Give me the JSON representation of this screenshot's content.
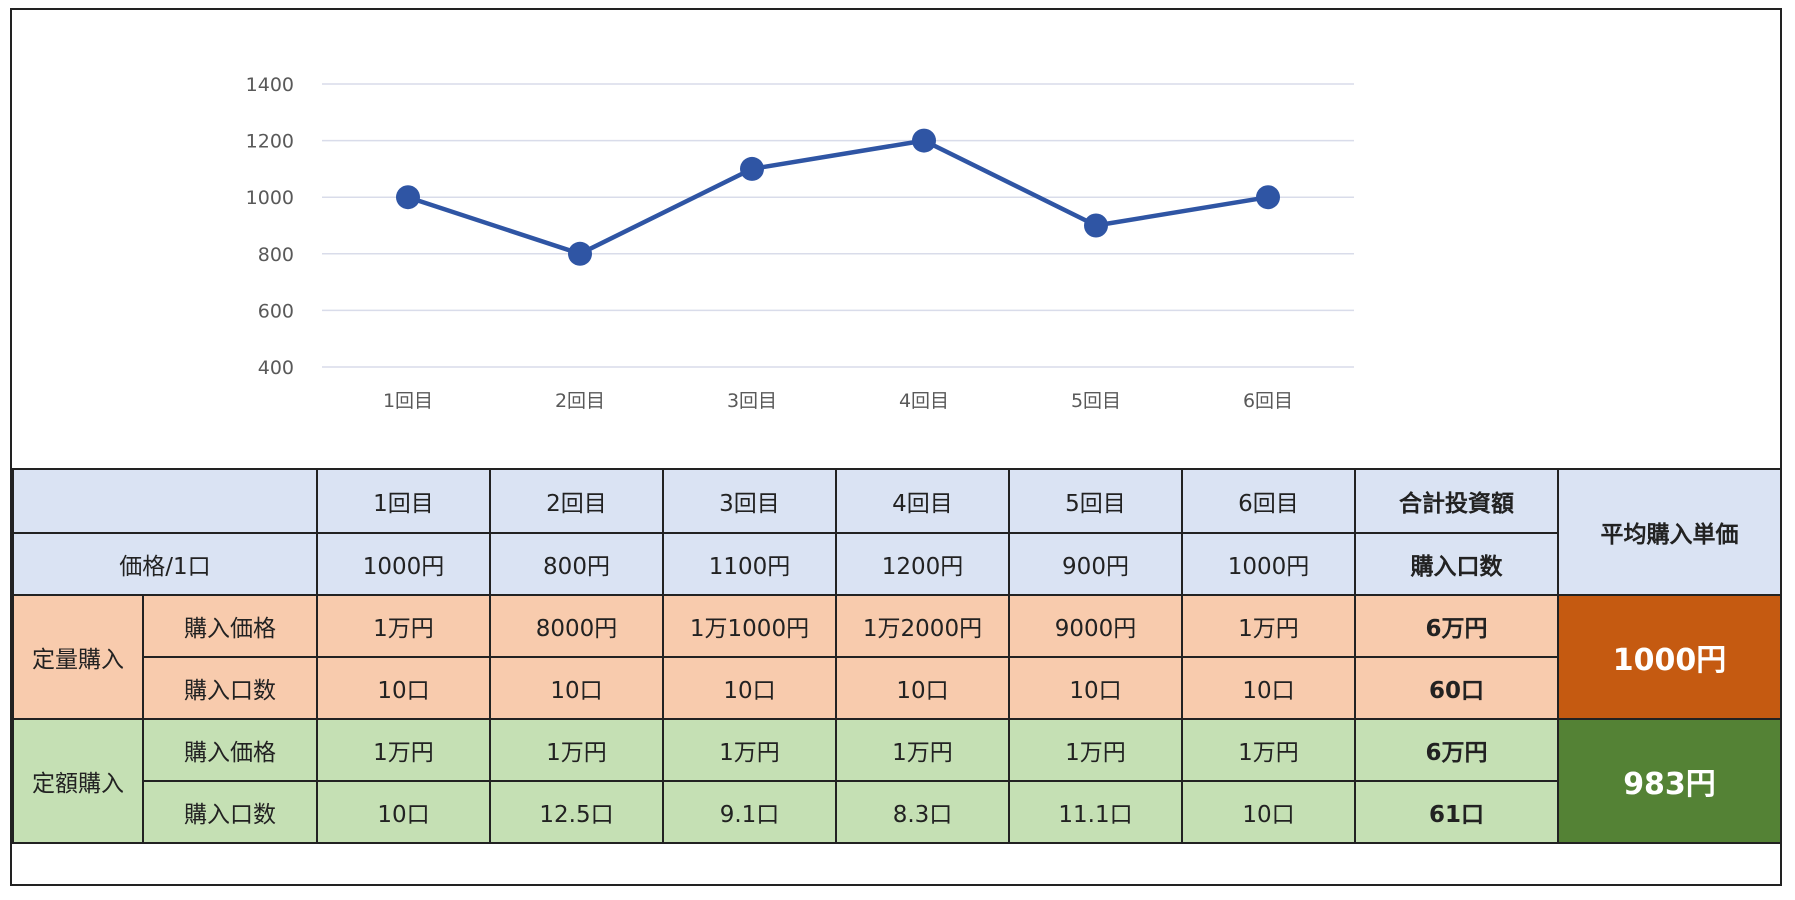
{
  "chart_data": {
    "type": "line",
    "categories": [
      "1回目",
      "2回目",
      "3回目",
      "4回目",
      "5回目",
      "6回目"
    ],
    "values": [
      1000,
      800,
      1100,
      1200,
      900,
      1000
    ],
    "yticks": [
      400,
      600,
      800,
      1000,
      1200,
      1400
    ],
    "ylim": [
      400,
      1400
    ],
    "grid": true,
    "line_color": "#2f55a4",
    "gridline_color": "#d9dcea"
  },
  "table": {
    "header_rounds": [
      "1回目",
      "2回目",
      "3回目",
      "4回目",
      "5回目",
      "6回目"
    ],
    "header_total": "合計投資額",
    "header_average": "平均購入単価",
    "price_label": "価格/1口",
    "prices": [
      "1000円",
      "800円",
      "1100円",
      "1200円",
      "900円",
      "1000円"
    ],
    "price_total_label": "購入口数",
    "teiryo": {
      "label": "定量購入",
      "price_label": "購入価格",
      "prices": [
        "1万円",
        "8000円",
        "1万1000円",
        "1万2000円",
        "9000円",
        "1万円"
      ],
      "price_total": "6万円",
      "units_label": "購入口数",
      "units": [
        "10口",
        "10口",
        "10口",
        "10口",
        "10口",
        "10口"
      ],
      "units_total": "60口",
      "average": "1000円"
    },
    "teigaku": {
      "label": "定額購入",
      "price_label": "購入価格",
      "prices": [
        "1万円",
        "1万円",
        "1万円",
        "1万円",
        "1万円",
        "1万円"
      ],
      "price_total": "6万円",
      "units_label": "購入口数",
      "units": [
        "10口",
        "12.5口",
        "9.1口",
        "8.3口",
        "11.1口",
        "10口"
      ],
      "units_total": "61口",
      "average": "983円"
    },
    "colors": {
      "header_bg": "#dae3f3",
      "teiryo_bg": "#f8cbad",
      "teigaku_bg": "#c5e0b4",
      "teiryo_avg_bg": "#c55a11",
      "teigaku_avg_bg": "#548235"
    }
  }
}
